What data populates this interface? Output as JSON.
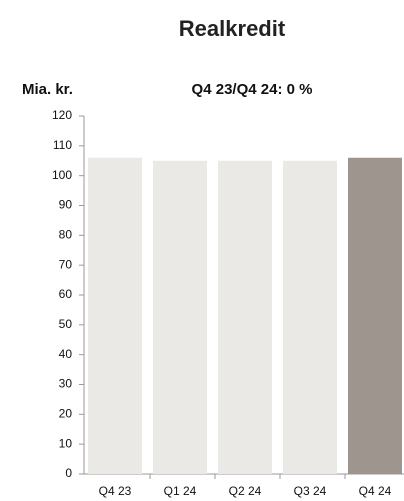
{
  "chart_data": {
    "type": "bar",
    "title": "Realkredit",
    "y_label": "Mia. kr.",
    "subtitle": "Q4 23/Q4 24: 0 %",
    "categories": [
      "Q4 23",
      "Q1 24",
      "Q2 24",
      "Q3 24",
      "Q4 24"
    ],
    "values": [
      106,
      105,
      105,
      105,
      106
    ],
    "colors": [
      "#ebe9e5",
      "#ebe9e5",
      "#ebe9e5",
      "#ebe9e5",
      "#9e958f"
    ],
    "ylim": [
      0,
      120
    ],
    "yticks": [
      0,
      10,
      20,
      30,
      40,
      50,
      60,
      70,
      80,
      90,
      100,
      110,
      120
    ],
    "grid": false
  }
}
